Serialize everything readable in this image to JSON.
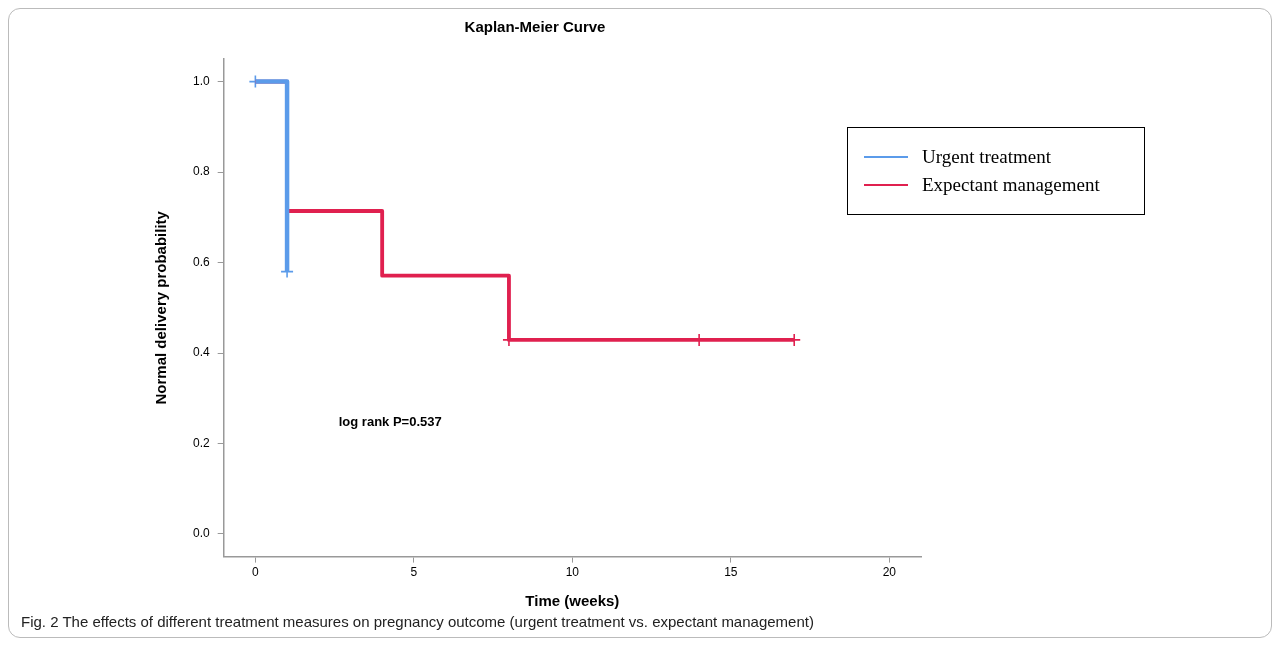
{
  "chart_data": {
    "type": "step",
    "title": "Kaplan-Meier Curve",
    "xlabel": "Time (weeks)",
    "ylabel": "Normal delivery probability",
    "series": [
      {
        "name": "Urgent treatment",
        "color": "#5b9bea",
        "x": [
          0,
          1
        ],
        "values": [
          1.0,
          0.58
        ]
      },
      {
        "name": "Expectant management",
        "color": "#e0204f",
        "x": [
          0,
          1,
          4,
          8,
          17
        ],
        "values": [
          1.0,
          0.714,
          0.571,
          0.429,
          0.429
        ]
      },
      {
        "type": "scatter",
        "color": "#5b9bea",
        "x": [
          0,
          1
        ],
        "values": [
          1.0,
          0.58
        ],
        "marker": "cross"
      },
      {
        "type": "scatter",
        "color": "#e0204f",
        "x": [
          8,
          14,
          17
        ],
        "values": [
          0.429,
          0.429,
          0.429
        ],
        "marker": "cross"
      }
    ],
    "xlim": [
      -1,
      21
    ],
    "xticks": [
      0,
      5,
      10,
      15,
      20
    ],
    "ylim": [
      -0.05,
      1.05
    ],
    "yticks": [
      {
        "value": 0,
        "label": "0.0"
      },
      {
        "value": 0.2,
        "label": "0.2"
      },
      {
        "value": 0.4,
        "label": "0.4"
      },
      {
        "value": 0.6,
        "label": "0.6"
      },
      {
        "value": 0.8,
        "label": "0.8"
      },
      {
        "value": 1,
        "label": "1.0"
      }
    ],
    "grid": false,
    "legend": "right",
    "marker": "none",
    "annotations": [
      "log rank P=0.537",
      "Fig. 2  The effects of different treatment measures on pregnancy outcome (urgent treatment vs. expectant management)"
    ]
  }
}
